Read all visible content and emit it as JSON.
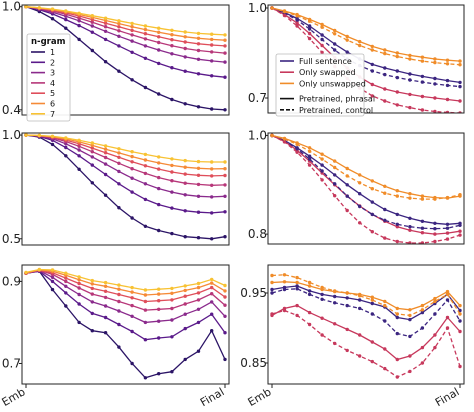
{
  "chart_data": [
    {
      "panel": "top-left",
      "type": "line",
      "x_ticks": [],
      "y_ticks": [
        {
          "value": 1.0,
          "label": "1.0"
        },
        {
          "value": 0.4,
          "label": "0.4"
        }
      ],
      "ylim": [
        0.37,
        1.01
      ],
      "series": [
        {
          "name": "1",
          "color": "#2b1466",
          "values": [
            1.0,
            0.972,
            0.93,
            0.875,
            0.81,
            0.745,
            0.68,
            0.625,
            0.575,
            0.53,
            0.492,
            0.46,
            0.435,
            0.418,
            0.405,
            0.4
          ]
        },
        {
          "name": "2",
          "color": "#5a1a8a",
          "values": [
            1.0,
            0.982,
            0.958,
            0.925,
            0.89,
            0.852,
            0.81,
            0.772,
            0.735,
            0.7,
            0.67,
            0.645,
            0.625,
            0.61,
            0.598,
            0.59
          ]
        },
        {
          "name": "3",
          "color": "#8a2a8c",
          "values": [
            1.0,
            0.986,
            0.968,
            0.945,
            0.918,
            0.888,
            0.857,
            0.828,
            0.8,
            0.772,
            0.748,
            0.726,
            0.708,
            0.694,
            0.685,
            0.678
          ]
        },
        {
          "name": "4",
          "color": "#b73779",
          "values": [
            1.0,
            0.989,
            0.975,
            0.956,
            0.934,
            0.91,
            0.884,
            0.86,
            0.836,
            0.813,
            0.792,
            0.773,
            0.757,
            0.745,
            0.737,
            0.73
          ]
        },
        {
          "name": "5",
          "color": "#df4e5a",
          "values": [
            1.0,
            0.991,
            0.979,
            0.964,
            0.946,
            0.925,
            0.904,
            0.883,
            0.862,
            0.843,
            0.825,
            0.808,
            0.795,
            0.784,
            0.777,
            0.772
          ]
        },
        {
          "name": "6",
          "color": "#f58a37",
          "values": [
            1.0,
            0.993,
            0.983,
            0.97,
            0.955,
            0.938,
            0.92,
            0.902,
            0.884,
            0.867,
            0.851,
            0.837,
            0.825,
            0.816,
            0.81,
            0.805
          ]
        },
        {
          "name": "7",
          "color": "#f8c233",
          "values": [
            1.0,
            0.994,
            0.986,
            0.975,
            0.962,
            0.948,
            0.933,
            0.918,
            0.903,
            0.888,
            0.875,
            0.863,
            0.853,
            0.845,
            0.84,
            0.836
          ]
        }
      ],
      "legend": {
        "title": "n-gram",
        "entries": [
          "1",
          "2",
          "3",
          "4",
          "5",
          "6",
          "7"
        ]
      }
    },
    {
      "panel": "top-right",
      "type": "line",
      "x_ticks": [],
      "y_ticks": [
        {
          "value": 1.0,
          "label": "1.0"
        },
        {
          "value": 0.7,
          "label": "0.7"
        }
      ],
      "ylim": [
        0.65,
        1.01
      ],
      "series": [
        {
          "name": "Full sentence",
          "style": "phrasal",
          "color": "#3b2580",
          "values": [
            1.0,
            0.985,
            0.965,
            0.94,
            0.91,
            0.88,
            0.853,
            0.83,
            0.812,
            0.8,
            0.79,
            0.78,
            0.772,
            0.765,
            0.758,
            0.752
          ]
        },
        {
          "name": "Only swapped",
          "style": "phrasal",
          "color": "#c7385c",
          "values": [
            1.0,
            0.978,
            0.95,
            0.915,
            0.875,
            0.835,
            0.8,
            0.77,
            0.745,
            0.73,
            0.72,
            0.712,
            0.705,
            0.7,
            0.695,
            0.69
          ]
        },
        {
          "name": "Only unswapped",
          "style": "phrasal",
          "color": "#f08c29",
          "values": [
            1.0,
            0.99,
            0.978,
            0.962,
            0.945,
            0.925,
            0.905,
            0.888,
            0.872,
            0.86,
            0.85,
            0.842,
            0.836,
            0.83,
            0.826,
            0.823
          ]
        },
        {
          "name": "Full sentence",
          "style": "control",
          "color": "#3b2580",
          "values": [
            1.0,
            0.983,
            0.96,
            0.93,
            0.895,
            0.86,
            0.83,
            0.808,
            0.79,
            0.778,
            0.768,
            0.76,
            0.753,
            0.747,
            0.742,
            0.738
          ]
        },
        {
          "name": "Only swapped",
          "style": "control",
          "color": "#c7385c",
          "values": [
            1.0,
            0.975,
            0.94,
            0.898,
            0.852,
            0.805,
            0.765,
            0.733,
            0.707,
            0.69,
            0.677,
            0.668,
            0.66,
            0.655,
            0.652,
            0.65
          ]
        },
        {
          "name": "Only unswapped",
          "style": "control",
          "color": "#f08c29",
          "values": [
            1.0,
            0.988,
            0.974,
            0.956,
            0.936,
            0.914,
            0.893,
            0.875,
            0.86,
            0.848,
            0.838,
            0.83,
            0.823,
            0.818,
            0.814,
            0.811
          ]
        }
      ],
      "legend": {
        "entries": [
          "Full sentence",
          "Only swapped",
          "Only unswapped",
          "Pretrained, phrasal",
          "Pretrained, control"
        ]
      }
    },
    {
      "panel": "middle-left",
      "type": "line",
      "x_ticks": [],
      "y_ticks": [
        {
          "value": 1.0,
          "label": "1.0"
        },
        {
          "value": 0.5,
          "label": "0.5"
        }
      ],
      "ylim": [
        0.47,
        1.01
      ],
      "series": [
        {
          "name": "1",
          "color": "#2b1466",
          "values": [
            1.0,
            0.99,
            0.955,
            0.9,
            0.835,
            0.77,
            0.71,
            0.65,
            0.6,
            0.56,
            0.54,
            0.525,
            0.51,
            0.505,
            0.5,
            0.51
          ]
        },
        {
          "name": "2",
          "color": "#5a1a8a",
          "values": [
            1.0,
            0.993,
            0.975,
            0.94,
            0.9,
            0.855,
            0.81,
            0.765,
            0.725,
            0.69,
            0.665,
            0.648,
            0.635,
            0.628,
            0.625,
            0.63
          ]
        },
        {
          "name": "3",
          "color": "#8a2a8c",
          "values": [
            1.0,
            0.995,
            0.982,
            0.958,
            0.928,
            0.895,
            0.86,
            0.825,
            0.792,
            0.765,
            0.742,
            0.725,
            0.712,
            0.705,
            0.702,
            0.705
          ]
        },
        {
          "name": "4",
          "color": "#b73779",
          "values": [
            1.0,
            0.996,
            0.987,
            0.969,
            0.946,
            0.92,
            0.892,
            0.864,
            0.838,
            0.815,
            0.795,
            0.78,
            0.768,
            0.762,
            0.758,
            0.76
          ]
        },
        {
          "name": "5",
          "color": "#df4e5a",
          "values": [
            1.0,
            0.997,
            0.99,
            0.976,
            0.958,
            0.937,
            0.915,
            0.893,
            0.871,
            0.852,
            0.836,
            0.822,
            0.812,
            0.806,
            0.803,
            0.805
          ]
        },
        {
          "name": "6",
          "color": "#f58a37",
          "values": [
            1.0,
            0.998,
            0.992,
            0.981,
            0.967,
            0.95,
            0.932,
            0.914,
            0.896,
            0.88,
            0.866,
            0.854,
            0.845,
            0.84,
            0.837,
            0.838
          ]
        },
        {
          "name": "7",
          "color": "#f8c233",
          "values": [
            1.0,
            0.998,
            0.994,
            0.986,
            0.975,
            0.962,
            0.948,
            0.934,
            0.92,
            0.907,
            0.895,
            0.885,
            0.877,
            0.872,
            0.87,
            0.87
          ]
        }
      ]
    },
    {
      "panel": "middle-right",
      "type": "line",
      "x_ticks": [],
      "y_ticks": [
        {
          "value": 1.0,
          "label": "1.0"
        },
        {
          "value": 0.8,
          "label": "0.8"
        }
      ],
      "ylim": [
        0.78,
        1.005
      ],
      "series": [
        {
          "name": "Full sentence",
          "style": "phrasal",
          "color": "#3b2580",
          "values": [
            1.0,
            0.99,
            0.975,
            0.958,
            0.94,
            0.92,
            0.9,
            0.882,
            0.865,
            0.85,
            0.84,
            0.832,
            0.826,
            0.822,
            0.82,
            0.822
          ]
        },
        {
          "name": "Only swapped",
          "style": "phrasal",
          "color": "#c7385c",
          "values": [
            1.0,
            0.988,
            0.97,
            0.948,
            0.924,
            0.9,
            0.877,
            0.857,
            0.84,
            0.826,
            0.815,
            0.808,
            0.803,
            0.8,
            0.802,
            0.806
          ]
        },
        {
          "name": "Only unswapped",
          "style": "phrasal",
          "color": "#f08c29",
          "values": [
            1.0,
            0.994,
            0.985,
            0.975,
            0.962,
            0.948,
            0.933,
            0.92,
            0.908,
            0.897,
            0.888,
            0.882,
            0.877,
            0.874,
            0.873,
            0.877
          ]
        },
        {
          "name": "Full sentence",
          "style": "control",
          "color": "#3b2580",
          "values": [
            1.0,
            0.99,
            0.973,
            0.952,
            0.928,
            0.902,
            0.877,
            0.856,
            0.84,
            0.828,
            0.82,
            0.815,
            0.812,
            0.811,
            0.812,
            0.818
          ]
        },
        {
          "name": "Only swapped",
          "style": "control",
          "color": "#c7385c",
          "values": [
            1.0,
            0.987,
            0.966,
            0.94,
            0.91,
            0.878,
            0.848,
            0.823,
            0.805,
            0.792,
            0.785,
            0.782,
            0.782,
            0.785,
            0.79,
            0.798
          ]
        },
        {
          "name": "Only unswapped",
          "style": "control",
          "color": "#f08c29",
          "values": [
            1.0,
            0.993,
            0.982,
            0.968,
            0.952,
            0.935,
            0.918,
            0.904,
            0.892,
            0.883,
            0.877,
            0.873,
            0.871,
            0.871,
            0.874,
            0.88
          ]
        }
      ]
    },
    {
      "panel": "bottom-left",
      "type": "line",
      "x_ticks": [
        {
          "value": 0,
          "label": "Emb"
        },
        {
          "value": 15,
          "label": "Final"
        }
      ],
      "y_ticks": [
        {
          "value": 0.9,
          "label": "0.9"
        },
        {
          "value": 0.7,
          "label": "0.7"
        }
      ],
      "ylim": [
        0.65,
        0.94
      ],
      "series": [
        {
          "name": "1",
          "color": "#2b1466",
          "values": [
            0.92,
            0.925,
            0.88,
            0.84,
            0.8,
            0.78,
            0.775,
            0.74,
            0.7,
            0.665,
            0.675,
            0.68,
            0.71,
            0.73,
            0.78,
            0.71
          ]
        },
        {
          "name": "2",
          "color": "#5a1a8a",
          "values": [
            0.92,
            0.925,
            0.9,
            0.872,
            0.845,
            0.822,
            0.812,
            0.795,
            0.778,
            0.758,
            0.762,
            0.765,
            0.785,
            0.8,
            0.82,
            0.775
          ]
        },
        {
          "name": "3",
          "color": "#8a2a8c",
          "values": [
            0.92,
            0.926,
            0.91,
            0.888,
            0.868,
            0.85,
            0.84,
            0.828,
            0.815,
            0.8,
            0.803,
            0.806,
            0.82,
            0.832,
            0.85,
            0.815
          ]
        },
        {
          "name": "4",
          "color": "#b73779",
          "values": [
            0.92,
            0.927,
            0.917,
            0.9,
            0.884,
            0.869,
            0.861,
            0.851,
            0.841,
            0.83,
            0.832,
            0.834,
            0.845,
            0.855,
            0.87,
            0.842
          ]
        },
        {
          "name": "5",
          "color": "#df4e5a",
          "values": [
            0.92,
            0.927,
            0.921,
            0.908,
            0.895,
            0.883,
            0.876,
            0.868,
            0.86,
            0.851,
            0.853,
            0.855,
            0.864,
            0.872,
            0.885,
            0.862
          ]
        },
        {
          "name": "6",
          "color": "#f58a37",
          "values": [
            0.921,
            0.928,
            0.925,
            0.915,
            0.904,
            0.894,
            0.888,
            0.881,
            0.874,
            0.867,
            0.869,
            0.871,
            0.878,
            0.885,
            0.896,
            0.877
          ]
        },
        {
          "name": "7",
          "color": "#f8c233",
          "values": [
            0.922,
            0.929,
            0.928,
            0.92,
            0.911,
            0.902,
            0.897,
            0.891,
            0.885,
            0.879,
            0.881,
            0.883,
            0.889,
            0.895,
            0.905,
            0.89
          ]
        }
      ]
    },
    {
      "panel": "bottom-right",
      "type": "line",
      "x_ticks": [
        {
          "value": 0,
          "label": "Emb"
        },
        {
          "value": 15,
          "label": "Final"
        }
      ],
      "y_ticks": [
        {
          "value": 0.95,
          "label": "0.95"
        },
        {
          "value": 0.85,
          "label": "0.85"
        }
      ],
      "ylim": [
        0.82,
        0.99
      ],
      "series": [
        {
          "name": "Full sentence",
          "style": "phrasal",
          "color": "#3b2580",
          "values": [
            0.955,
            0.958,
            0.96,
            0.953,
            0.948,
            0.945,
            0.943,
            0.94,
            0.935,
            0.93,
            0.915,
            0.912,
            0.922,
            0.935,
            0.948,
            0.925
          ]
        },
        {
          "name": "Only swapped",
          "style": "phrasal",
          "color": "#c7385c",
          "values": [
            0.918,
            0.928,
            0.932,
            0.922,
            0.914,
            0.906,
            0.898,
            0.89,
            0.88,
            0.87,
            0.855,
            0.86,
            0.872,
            0.89,
            0.915,
            0.895
          ]
        },
        {
          "name": "Only unswapped",
          "style": "phrasal",
          "color": "#f08c29",
          "values": [
            0.965,
            0.966,
            0.965,
            0.96,
            0.955,
            0.952,
            0.95,
            0.948,
            0.944,
            0.938,
            0.928,
            0.926,
            0.932,
            0.942,
            0.952,
            0.932
          ]
        },
        {
          "name": "Full sentence",
          "style": "control",
          "color": "#3b2580",
          "values": [
            0.95,
            0.955,
            0.956,
            0.948,
            0.941,
            0.936,
            0.932,
            0.928,
            0.92,
            0.91,
            0.892,
            0.888,
            0.9,
            0.92,
            0.94,
            0.91
          ]
        },
        {
          "name": "Only swapped",
          "style": "control",
          "color": "#c7385c",
          "values": [
            0.92,
            0.925,
            0.918,
            0.905,
            0.89,
            0.878,
            0.868,
            0.86,
            0.852,
            0.842,
            0.83,
            0.838,
            0.85,
            0.872,
            0.9,
            0.845
          ]
        },
        {
          "name": "Only unswapped",
          "style": "control",
          "color": "#f08c29",
          "values": [
            0.975,
            0.976,
            0.972,
            0.965,
            0.958,
            0.953,
            0.95,
            0.946,
            0.94,
            0.932,
            0.92,
            0.918,
            0.926,
            0.938,
            0.948,
            0.92
          ]
        }
      ]
    }
  ]
}
